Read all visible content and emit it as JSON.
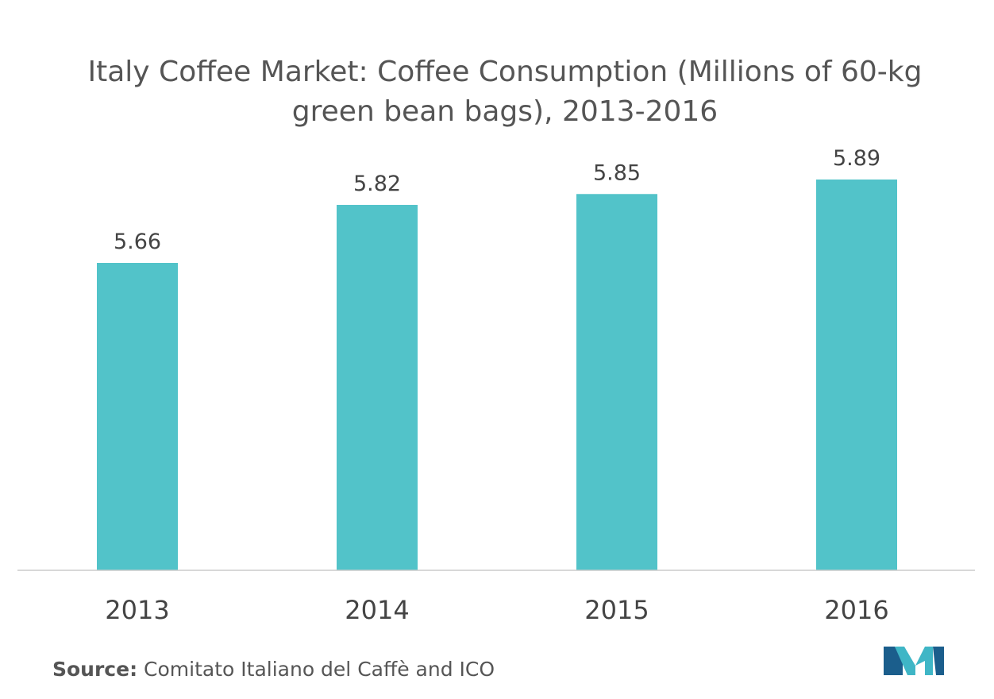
{
  "chart_data": {
    "type": "bar",
    "title": "Italy Coffee Market: Coffee Consumption (Millions of 60-kg green bean bags), 2013-2016",
    "categories": [
      "2013",
      "2014",
      "2015",
      "2016"
    ],
    "values": [
      5.66,
      5.82,
      5.85,
      5.89
    ],
    "data_labels": [
      "5.66",
      "5.82",
      "5.85",
      "5.89"
    ],
    "xlabel": "",
    "ylabel": "",
    "grid": false,
    "legend": "none",
    "bar_color": "#52C3C9",
    "axis_color": "#cccccc",
    "label_color": "#444444"
  },
  "footer": {
    "source_label": "Source:",
    "source_text": "Comitato Italiano del Caffè and ICO"
  },
  "logo": {
    "icon": "mordor-intelligence-logo-icon",
    "colors": [
      "#1B5E8C",
      "#3FB6C6"
    ]
  }
}
